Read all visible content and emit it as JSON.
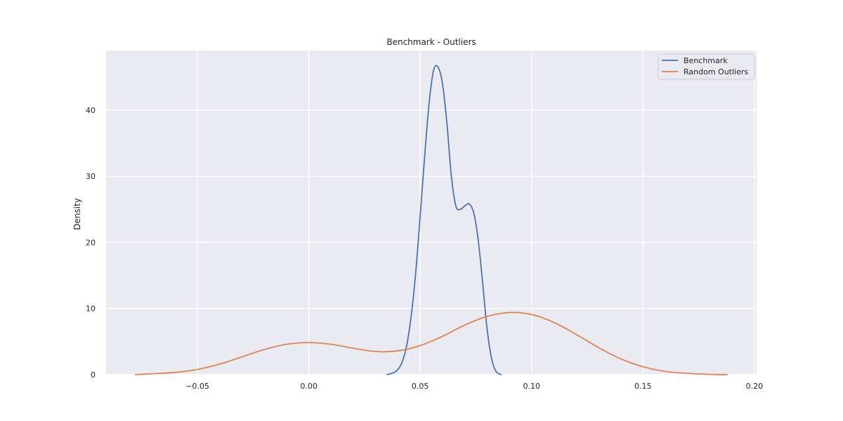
{
  "chart_data": {
    "type": "line",
    "title": "Benchmark - Outliers",
    "xlabel": "",
    "ylabel": "Density",
    "xlim": [
      -0.091,
      0.201
    ],
    "ylim": [
      0,
      49
    ],
    "xticks": [
      -0.05,
      0.0,
      0.05,
      0.1,
      0.15,
      0.2
    ],
    "xtick_labels": [
      "−0.05",
      "0.00",
      "0.05",
      "0.10",
      "0.15",
      "0.20"
    ],
    "yticks": [
      0,
      10,
      20,
      30,
      40
    ],
    "ytick_labels": [
      "0",
      "10",
      "20",
      "30",
      "40"
    ],
    "grid": true,
    "legend": "top-right",
    "background": "#eaeaf2",
    "series": [
      {
        "name": "Benchmark",
        "color": "#4c72b0",
        "x": [
          0.035,
          0.038,
          0.04,
          0.042,
          0.044,
          0.046,
          0.048,
          0.05,
          0.052,
          0.054,
          0.056,
          0.058,
          0.06,
          0.062,
          0.064,
          0.066,
          0.068,
          0.07,
          0.072,
          0.074,
          0.076,
          0.078,
          0.08,
          0.082,
          0.084,
          0.0865
        ],
        "y": [
          0.0,
          0.3,
          0.8,
          2.0,
          4.5,
          9.0,
          15.5,
          24.0,
          33.0,
          41.0,
          46.0,
          46.5,
          44.0,
          38.0,
          30.0,
          25.5,
          25.0,
          25.5,
          25.8,
          24.5,
          20.5,
          14.0,
          7.0,
          2.5,
          0.5,
          0.0
        ]
      },
      {
        "name": "Random Outliers",
        "color": "#dd8452",
        "x": [
          -0.078,
          -0.07,
          -0.06,
          -0.05,
          -0.04,
          -0.03,
          -0.02,
          -0.01,
          0.0,
          0.01,
          0.02,
          0.03,
          0.04,
          0.05,
          0.06,
          0.07,
          0.08,
          0.09,
          0.1,
          0.11,
          0.12,
          0.13,
          0.14,
          0.15,
          0.16,
          0.17,
          0.18,
          0.188
        ],
        "y": [
          0.0,
          0.15,
          0.35,
          0.8,
          1.6,
          2.7,
          3.8,
          4.6,
          4.85,
          4.6,
          4.0,
          3.5,
          3.6,
          4.4,
          5.8,
          7.5,
          8.8,
          9.4,
          9.1,
          7.9,
          6.1,
          4.1,
          2.4,
          1.2,
          0.5,
          0.2,
          0.05,
          0.0
        ]
      }
    ]
  }
}
